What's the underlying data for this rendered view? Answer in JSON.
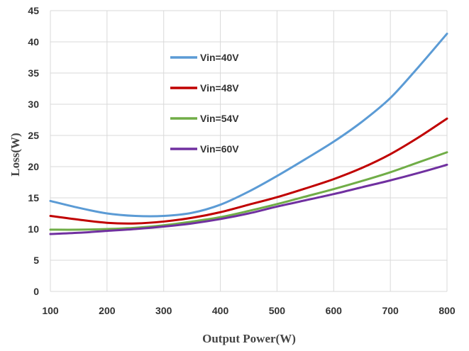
{
  "chart_data": {
    "type": "line",
    "title": "",
    "xlabel": "Output Power(W)",
    "ylabel": "Loss(W)",
    "xlim": [
      100,
      800
    ],
    "ylim": [
      0,
      45
    ],
    "x_ticks": [
      "100",
      "200",
      "300",
      "400",
      "500",
      "600",
      "700",
      "800"
    ],
    "y_ticks": [
      "0",
      "5",
      "10",
      "15",
      "20",
      "25",
      "30",
      "35",
      "40",
      "45"
    ],
    "grid": true,
    "legend_position": "upper-left-inside",
    "x": [
      100,
      150,
      200,
      250,
      300,
      350,
      400,
      450,
      500,
      550,
      600,
      650,
      700,
      750,
      800
    ],
    "series": [
      {
        "name": "Vin=40V",
        "color": "#5b9bd5",
        "values": [
          14.5,
          13.4,
          12.5,
          12.1,
          12.1,
          12.6,
          13.9,
          16.0,
          18.5,
          21.2,
          24.0,
          27.2,
          31.0,
          36.0,
          41.3
        ]
      },
      {
        "name": "Vin=48V",
        "color": "#c00000",
        "values": [
          12.1,
          11.5,
          11.0,
          10.9,
          11.2,
          11.8,
          12.7,
          13.9,
          15.1,
          16.5,
          18.0,
          19.8,
          22.0,
          24.7,
          27.7
        ]
      },
      {
        "name": "Vin=54V",
        "color": "#70ad47",
        "values": [
          9.9,
          9.9,
          10.0,
          10.2,
          10.6,
          11.2,
          11.9,
          12.9,
          14.0,
          15.2,
          16.4,
          17.7,
          19.1,
          20.7,
          22.3
        ]
      },
      {
        "name": "Vin=60V",
        "color": "#7030a0",
        "values": [
          9.2,
          9.4,
          9.7,
          10.0,
          10.4,
          10.9,
          11.6,
          12.5,
          13.6,
          14.6,
          15.6,
          16.7,
          17.8,
          19.0,
          20.3
        ]
      }
    ]
  }
}
